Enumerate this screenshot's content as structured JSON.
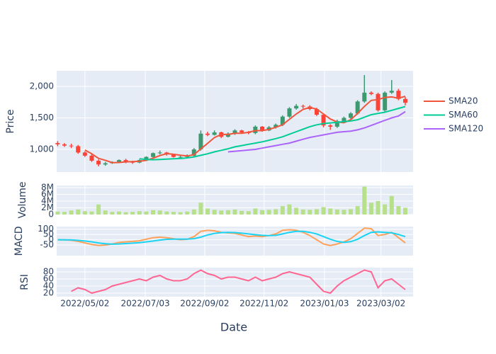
{
  "chart_data": {
    "type": "candlestick",
    "xlabel": "Date",
    "ylabel": "Price",
    "x": [
      "2022-04-04",
      "2022-04-11",
      "2022-04-18",
      "2022-04-25",
      "2022-05-02",
      "2022-05-09",
      "2022-05-16",
      "2022-05-23",
      "2022-05-30",
      "2022-06-06",
      "2022-06-13",
      "2022-06-20",
      "2022-06-27",
      "2022-07-04",
      "2022-07-11",
      "2022-07-18",
      "2022-07-25",
      "2022-08-01",
      "2022-08-08",
      "2022-08-15",
      "2022-08-22",
      "2022-08-29",
      "2022-09-05",
      "2022-09-12",
      "2022-09-19",
      "2022-09-26",
      "2022-10-03",
      "2022-10-10",
      "2022-10-17",
      "2022-10-24",
      "2022-10-31",
      "2022-11-07",
      "2022-11-14",
      "2022-11-21",
      "2022-11-28",
      "2022-12-05",
      "2022-12-12",
      "2022-12-19",
      "2022-12-26",
      "2023-01-02",
      "2023-01-09",
      "2023-01-16",
      "2023-01-23",
      "2023-01-30",
      "2023-02-06",
      "2023-02-13",
      "2023-02-20",
      "2023-02-27",
      "2023-03-06",
      "2023-03-13",
      "2023-03-20",
      "2023-03-27"
    ],
    "xlim": [
      "2022-04-03",
      "2023-04-04"
    ],
    "xticks": [
      {
        "value": "2022-05-02",
        "label": "2022/05/02"
      },
      {
        "value": "2022-07-03",
        "label": "2022/07/03"
      },
      {
        "value": "2022-09-02",
        "label": "2022/09/02"
      },
      {
        "value": "2022-11-02",
        "label": "2022/11/02"
      },
      {
        "value": "2023-01-03",
        "label": "2023/01/03"
      },
      {
        "value": "2023-03-02",
        "label": "2023/03/02"
      }
    ],
    "open": [
      1100,
      1080,
      1060,
      1050,
      950,
      900,
      820,
      760,
      780,
      800,
      830,
      800,
      790,
      830,
      880,
      940,
      950,
      920,
      880,
      880,
      900,
      1000,
      1250,
      1230,
      1270,
      1200,
      1250,
      1300,
      1270,
      1260,
      1360,
      1300,
      1350,
      1390,
      1520,
      1650,
      1690,
      1680,
      1640,
      1550,
      1380,
      1360,
      1450,
      1500,
      1570,
      1760,
      1900,
      1880,
      1620,
      1900,
      1930,
      1800
    ],
    "high": [
      1130,
      1100,
      1090,
      1070,
      970,
      920,
      840,
      800,
      810,
      840,
      850,
      820,
      840,
      890,
      950,
      980,
      960,
      930,
      900,
      920,
      1020,
      1300,
      1280,
      1300,
      1280,
      1270,
      1320,
      1310,
      1290,
      1380,
      1370,
      1370,
      1410,
      1540,
      1670,
      1720,
      1710,
      1700,
      1660,
      1570,
      1400,
      1470,
      1520,
      1590,
      1780,
      2180,
      1920,
      1900,
      1920,
      2100,
      1960,
      1830
    ],
    "low": [
      1050,
      1040,
      1020,
      930,
      880,
      800,
      730,
      740,
      770,
      790,
      780,
      770,
      780,
      820,
      870,
      920,
      900,
      870,
      860,
      860,
      880,
      980,
      1210,
      1220,
      1180,
      1190,
      1230,
      1250,
      1240,
      1240,
      1280,
      1290,
      1330,
      1370,
      1500,
      1630,
      1650,
      1620,
      1530,
      1350,
      1310,
      1340,
      1430,
      1480,
      1550,
      1740,
      1860,
      1600,
      1590,
      1880,
      1780,
      1700
    ],
    "close": [
      1080,
      1060,
      1050,
      950,
      900,
      820,
      760,
      780,
      800,
      830,
      800,
      790,
      830,
      880,
      940,
      950,
      920,
      880,
      880,
      900,
      1000,
      1250,
      1230,
      1270,
      1200,
      1250,
      1300,
      1270,
      1260,
      1360,
      1300,
      1350,
      1390,
      1520,
      1650,
      1690,
      1680,
      1640,
      1550,
      1380,
      1360,
      1450,
      1500,
      1570,
      1760,
      1900,
      1880,
      1620,
      1900,
      1930,
      1800,
      1740
    ],
    "increasing_color": "#3d9970",
    "decreasing_color": "#ff4136",
    "ylim": [
      640,
      2247
    ],
    "yticks": [
      {
        "value": 1000,
        "label": "1,000"
      },
      {
        "value": 1500,
        "label": "1,500"
      },
      {
        "value": 2000,
        "label": "2,000"
      }
    ],
    "grid": true,
    "legend": "right",
    "series": [
      {
        "name": "SMA20",
        "color": "#ef553b",
        "values": [
          null,
          null,
          null,
          null,
          990,
          930,
          857,
          827,
          790,
          792,
          802,
          805,
          812,
          825,
          860,
          902,
          932,
          922,
          907,
          895,
          915,
          1007,
          1095,
          1187,
          1237,
          1237,
          1255,
          1255,
          1270,
          1297,
          1297,
          1317,
          1350,
          1390,
          1477,
          1562,
          1635,
          1665,
          1640,
          1562,
          1482,
          1435,
          1422,
          1470,
          1570,
          1682,
          1777,
          1790,
          1825,
          1832,
          1812,
          1842
        ]
      },
      {
        "name": "SMA60",
        "color": "#00cc96",
        "values": [
          null,
          null,
          null,
          null,
          null,
          null,
          null,
          null,
          null,
          null,
          null,
          null,
          850,
          840,
          835,
          840,
          845,
          850,
          855,
          865,
          880,
          905,
          930,
          960,
          985,
          1010,
          1040,
          1060,
          1080,
          1100,
          1120,
          1145,
          1170,
          1200,
          1240,
          1280,
          1320,
          1360,
          1390,
          1410,
          1420,
          1430,
          1440,
          1450,
          1470,
          1510,
          1550,
          1570,
          1590,
          1620,
          1650,
          1680
        ]
      },
      {
        "name": "SMA120",
        "color": "#ab63fa",
        "values": [
          null,
          null,
          null,
          null,
          null,
          null,
          null,
          null,
          null,
          null,
          null,
          null,
          null,
          null,
          null,
          null,
          null,
          null,
          null,
          null,
          null,
          null,
          null,
          null,
          null,
          960,
          970,
          980,
          990,
          1000,
          1020,
          1040,
          1060,
          1080,
          1100,
          1130,
          1160,
          1190,
          1210,
          1230,
          1250,
          1270,
          1280,
          1290,
          1310,
          1340,
          1380,
          1420,
          1460,
          1500,
          1530,
          1600
        ]
      }
    ],
    "subplots": [
      {
        "type": "bar",
        "ylabel": "Volume",
        "color": "#b6e08a",
        "values": [
          900000,
          800000,
          1200000,
          1500000,
          1000000,
          900000,
          3000000,
          1200000,
          800000,
          900000,
          700000,
          800000,
          1000000,
          900000,
          1300000,
          1200000,
          900000,
          800000,
          700000,
          900000,
          1500000,
          3500000,
          1800000,
          1400000,
          1200000,
          1300000,
          1500000,
          1100000,
          1000000,
          1800000,
          1300000,
          1400000,
          1600000,
          2500000,
          3000000,
          2000000,
          1500000,
          1400000,
          1600000,
          2200000,
          1800000,
          1500000,
          1400000,
          1600000,
          2500000,
          8300000,
          3500000,
          4000000,
          3000000,
          5500000,
          2500000,
          2000000
        ],
        "ylim": [
          0,
          8630000
        ],
        "yticks": [
          0,
          {
            "value": 2000000,
            "label": "2M"
          },
          {
            "value": 4000000,
            "label": "4M"
          },
          {
            "value": 6000000,
            "label": "6M"
          },
          {
            "value": 8000000,
            "label": "8M"
          }
        ]
      },
      {
        "type": "line",
        "ylabel": "MACD",
        "series": [
          {
            "color": "#ffa15a",
            "values": [
              0,
              -2,
              -5,
              -15,
              -30,
              -45,
              -55,
              -50,
              -40,
              -25,
              -20,
              -15,
              -10,
              5,
              20,
              25,
              20,
              10,
              0,
              5,
              30,
              80,
              90,
              85,
              70,
              65,
              60,
              45,
              30,
              35,
              30,
              40,
              55,
              90,
              95,
              90,
              70,
              40,
              0,
              -40,
              -55,
              -40,
              -20,
              10,
              60,
              110,
              105,
              40,
              50,
              70,
              20,
              -30
            ]
          },
          {
            "color": "#19d3f3",
            "values": [
              0,
              -1,
              -2,
              -6,
              -12,
              -20,
              -30,
              -38,
              -42,
              -40,
              -36,
              -32,
              -27,
              -20,
              -12,
              -3,
              4,
              6,
              6,
              6,
              10,
              25,
              45,
              60,
              68,
              70,
              68,
              62,
              55,
              48,
              42,
              40,
              42,
              55,
              70,
              80,
              80,
              70,
              55,
              30,
              5,
              -15,
              -25,
              -18,
              5,
              40,
              70,
              75,
              70,
              65,
              50,
              30
            ]
          }
        ],
        "ylim": [
          -150,
          125
        ],
        "yticks": [
          -50,
          0,
          50,
          100
        ]
      },
      {
        "type": "line",
        "ylabel": "RSI",
        "series": [
          {
            "color": "#ff6692",
            "values": [
              null,
              null,
              25,
              35,
              30,
              20,
              25,
              30,
              40,
              45,
              50,
              55,
              60,
              55,
              65,
              70,
              60,
              55,
              55,
              60,
              75,
              85,
              75,
              70,
              60,
              65,
              65,
              60,
              55,
              65,
              55,
              60,
              65,
              75,
              80,
              75,
              70,
              65,
              45,
              25,
              20,
              40,
              55,
              65,
              75,
              85,
              80,
              35,
              55,
              60,
              45,
              30
            ]
          }
        ],
        "ylim": [
          10,
          92
        ],
        "yticks": [
          20,
          40,
          60,
          80
        ]
      }
    ]
  }
}
